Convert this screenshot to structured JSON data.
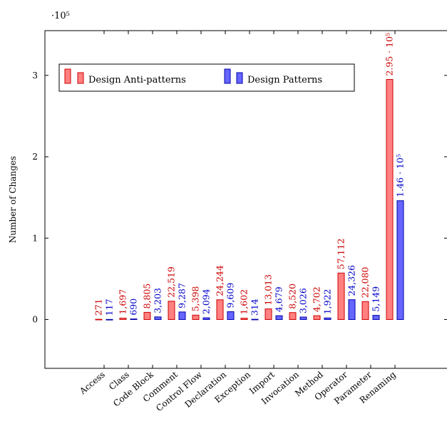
{
  "chart_data": {
    "type": "bar",
    "title": "",
    "xlabel": "",
    "ylabel": "Number of Changes",
    "y_scale_label": "·10⁵",
    "ylim": [
      -0.6,
      3.55
    ],
    "y_ticks": [
      0,
      1,
      2,
      3
    ],
    "grid": false,
    "legend_position": "top-left",
    "categories": [
      "Access",
      "Class",
      "Code Block",
      "Comment",
      "Control Flow",
      "Declaration",
      "Exception",
      "Import",
      "Invocation",
      "Method",
      "Operator",
      "Parameter",
      "Renaming"
    ],
    "series": [
      {
        "name": "Design Anti-patterns",
        "color": "#ff8080",
        "stroke": "#cc0000",
        "label_color": "#cc0000",
        "values": [
          271,
          1697,
          8805,
          22519,
          5398,
          24244,
          1602,
          13013,
          8520,
          4702,
          57112,
          22080,
          295000
        ],
        "labels": [
          "271",
          "1,697",
          "8,805",
          "22,519",
          "5,398",
          "24,244",
          "1,602",
          "13,013",
          "8,520",
          "4,702",
          "57,112",
          "22,080",
          "2.95 · 10⁵"
        ]
      },
      {
        "name": "Design Patterns",
        "color": "#6666ff",
        "stroke": "#0000aa",
        "label_color": "#0000cc",
        "values": [
          117,
          690,
          3203,
          9287,
          2094,
          9609,
          314,
          4679,
          3026,
          1922,
          24326,
          5149,
          146000
        ],
        "labels": [
          "117",
          "690",
          "3,203",
          "9,287",
          "2,094",
          "9,609",
          "314",
          "4,679",
          "3,026",
          "1,922",
          "24,326",
          "5,149",
          "1.46 · 10⁵"
        ]
      }
    ]
  }
}
